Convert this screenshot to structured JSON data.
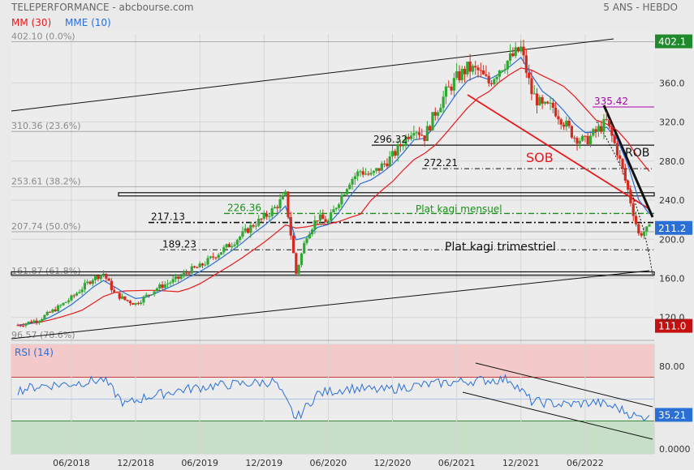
{
  "header": {
    "title": "TELEPERFORMANCE - abcbourse.com",
    "period": "5 ANS - HEBDO",
    "ma_label": "MM (30)",
    "ema_label": "MME (10)",
    "rsi_label": "RSI (14)"
  },
  "colors": {
    "background": "#eaeaea",
    "ma": "#e8191c",
    "ema": "#2a6fd6",
    "candle_up": "#31a832",
    "candle_down": "#d62a1f",
    "price_badge": "#2a6fd6",
    "low_badge": "#c41010",
    "high_badge": "#1f8a2b",
    "annotation_green": "#1b8f1b",
    "annotation_purple": "#b000b0"
  },
  "chart_data": {
    "type": "line",
    "subtype": "candlestick",
    "x_tick_labels": [
      "06/2018",
      "12/2018",
      "06/2019",
      "12/2019",
      "06/2020",
      "12/2020",
      "06/2021",
      "12/2021",
      "06/2022"
    ],
    "x_range": [
      "2018-01",
      "2022-12"
    ],
    "y_range": [
      96.57,
      410
    ],
    "y_tick_labels": [
      "360.0",
      "320.0",
      "280.0",
      "240.0",
      "200.0",
      "160.0",
      "120.0"
    ],
    "last_price": "211.2",
    "high_badge": "402.1",
    "low_badge": "111.0",
    "price_series_monthly": [
      {
        "t": "2018-01",
        "v": 112
      },
      {
        "t": "2018-02",
        "v": 115
      },
      {
        "t": "2018-03",
        "v": 118
      },
      {
        "t": "2018-04",
        "v": 125
      },
      {
        "t": "2018-05",
        "v": 132
      },
      {
        "t": "2018-06",
        "v": 140
      },
      {
        "t": "2018-07",
        "v": 150
      },
      {
        "t": "2018-08",
        "v": 160
      },
      {
        "t": "2018-09",
        "v": 165
      },
      {
        "t": "2018-10",
        "v": 145
      },
      {
        "t": "2018-11",
        "v": 138
      },
      {
        "t": "2018-12",
        "v": 134
      },
      {
        "t": "2019-01",
        "v": 142
      },
      {
        "t": "2019-02",
        "v": 150
      },
      {
        "t": "2019-03",
        "v": 155
      },
      {
        "t": "2019-04",
        "v": 160
      },
      {
        "t": "2019-05",
        "v": 168
      },
      {
        "t": "2019-06",
        "v": 172
      },
      {
        "t": "2019-07",
        "v": 180
      },
      {
        "t": "2019-08",
        "v": 188
      },
      {
        "t": "2019-09",
        "v": 196
      },
      {
        "t": "2019-10",
        "v": 205
      },
      {
        "t": "2019-11",
        "v": 215
      },
      {
        "t": "2019-12",
        "v": 222
      },
      {
        "t": "2020-01",
        "v": 232
      },
      {
        "t": "2020-02",
        "v": 245
      },
      {
        "t": "2020-03",
        "v": 165
      },
      {
        "t": "2020-04",
        "v": 205
      },
      {
        "t": "2020-05",
        "v": 222
      },
      {
        "t": "2020-06",
        "v": 218
      },
      {
        "t": "2020-07",
        "v": 240
      },
      {
        "t": "2020-08",
        "v": 260
      },
      {
        "t": "2020-09",
        "v": 270
      },
      {
        "t": "2020-10",
        "v": 265
      },
      {
        "t": "2020-11",
        "v": 275
      },
      {
        "t": "2020-12",
        "v": 285
      },
      {
        "t": "2021-01",
        "v": 300
      },
      {
        "t": "2021-02",
        "v": 315
      },
      {
        "t": "2021-03",
        "v": 305
      },
      {
        "t": "2021-04",
        "v": 330
      },
      {
        "t": "2021-05",
        "v": 350
      },
      {
        "t": "2021-06",
        "v": 365
      },
      {
        "t": "2021-07",
        "v": 375
      },
      {
        "t": "2021-08",
        "v": 372
      },
      {
        "t": "2021-09",
        "v": 360
      },
      {
        "t": "2021-10",
        "v": 375
      },
      {
        "t": "2021-11",
        "v": 385
      },
      {
        "t": "2021-12",
        "v": 395
      },
      {
        "t": "2022-01",
        "v": 350
      },
      {
        "t": "2022-02",
        "v": 335
      },
      {
        "t": "2022-03",
        "v": 335
      },
      {
        "t": "2022-04",
        "v": 320
      },
      {
        "t": "2022-05",
        "v": 305
      },
      {
        "t": "2022-06",
        "v": 300
      },
      {
        "t": "2022-07",
        "v": 310
      },
      {
        "t": "2022-08",
        "v": 320
      },
      {
        "t": "2022-09",
        "v": 290
      },
      {
        "t": "2022-10",
        "v": 250
      },
      {
        "t": "2022-11",
        "v": 205
      },
      {
        "t": "2022-12",
        "v": 211
      }
    ],
    "fib_levels": [
      {
        "label": "402.10  (0.0%)",
        "value": 402.1
      },
      {
        "label": "310.36  (23.6%)",
        "value": 310.36
      },
      {
        "label": "253.61  (38.2%)",
        "value": 253.61
      },
      {
        "label": "207.74  (50.0%)",
        "value": 207.74
      },
      {
        "label": "161.87  (61.8%)",
        "value": 161.87
      },
      {
        "label": "96.57  (78.6%)",
        "value": 96.57
      }
    ],
    "horizontal_levels": [
      {
        "label": "296.32",
        "value": 296.32
      },
      {
        "label": "272.21",
        "value": 272.21
      },
      {
        "label": "226.36",
        "value": 226.36
      },
      {
        "label": "217.13",
        "value": 217.13
      },
      {
        "label": "189.23",
        "value": 189.23
      },
      {
        "label": "335.42",
        "value": 335.42
      }
    ],
    "annotations": {
      "sob": "SOB",
      "rob": "ROB",
      "plat_mensuel": "Plat kagi mensuel",
      "plat_trimestriel": "Plat kagi trimestriel"
    },
    "rsi": {
      "y_tick_labels": [
        "80.00",
        "0.0000"
      ],
      "overbought": 70,
      "oversold": 30,
      "last": "35.21",
      "series_monthly": [
        {
          "t": "2018-01",
          "v": 58
        },
        {
          "t": "2018-03",
          "v": 62
        },
        {
          "t": "2018-06",
          "v": 64
        },
        {
          "t": "2018-09",
          "v": 68
        },
        {
          "t": "2018-11",
          "v": 45
        },
        {
          "t": "2019-01",
          "v": 52
        },
        {
          "t": "2019-04",
          "v": 58
        },
        {
          "t": "2019-07",
          "v": 62
        },
        {
          "t": "2019-10",
          "v": 64
        },
        {
          "t": "2020-01",
          "v": 66
        },
        {
          "t": "2020-03",
          "v": 32
        },
        {
          "t": "2020-05",
          "v": 55
        },
        {
          "t": "2020-08",
          "v": 60
        },
        {
          "t": "2020-11",
          "v": 58
        },
        {
          "t": "2021-02",
          "v": 62
        },
        {
          "t": "2021-05",
          "v": 65
        },
        {
          "t": "2021-08",
          "v": 67
        },
        {
          "t": "2021-11",
          "v": 68
        },
        {
          "t": "2022-01",
          "v": 48
        },
        {
          "t": "2022-04",
          "v": 45
        },
        {
          "t": "2022-07",
          "v": 47
        },
        {
          "t": "2022-09",
          "v": 42
        },
        {
          "t": "2022-11",
          "v": 33
        },
        {
          "t": "2022-12",
          "v": 35.21
        }
      ]
    }
  }
}
